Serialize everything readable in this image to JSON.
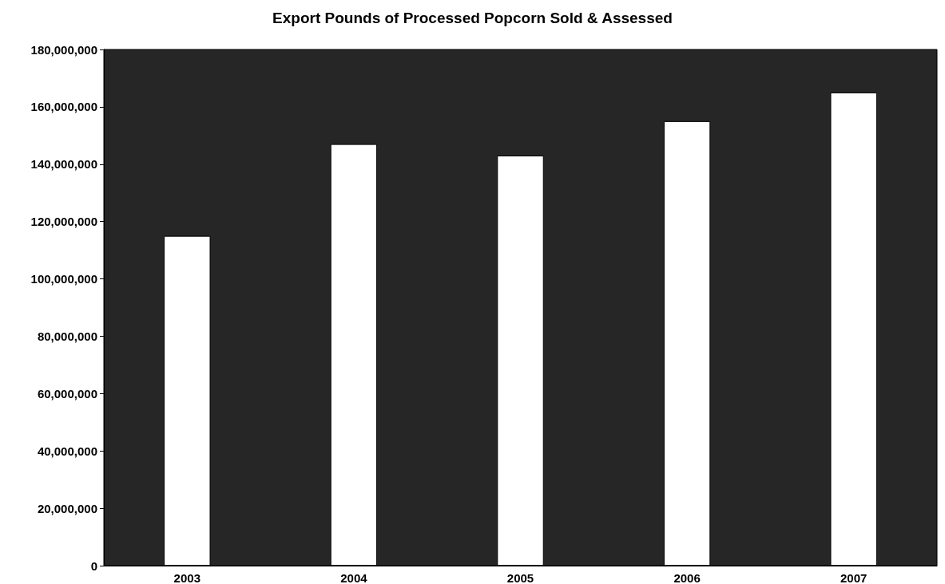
{
  "chart_data": {
    "type": "bar",
    "title": "Export Pounds of Processed Popcorn Sold & Assessed",
    "categories": [
      "2003",
      "2004",
      "2005",
      "2006",
      "2007"
    ],
    "values": [
      115000000,
      147000000,
      143000000,
      155000000,
      165000000
    ],
    "color": "#ffffff",
    "ylim": [
      0,
      180000000
    ],
    "yticks": [
      0,
      {
        "value": 20000000,
        "label": "20,000,000"
      },
      {
        "value": 40000000,
        "label": "40,000,000"
      },
      {
        "value": 60000000,
        "label": "60,000,000"
      },
      {
        "value": 80000000,
        "label": "80,000,000"
      },
      {
        "value": 100000000,
        "label": "100,000,000"
      },
      {
        "value": 120000000,
        "label": "120,000,000"
      },
      {
        "value": 140000000,
        "label": "140,000,000"
      },
      {
        "value": 160000000,
        "label": "160,000,000"
      },
      {
        "value": 180000000,
        "label": "180,000,000"
      }
    ],
    "grid": false
  }
}
